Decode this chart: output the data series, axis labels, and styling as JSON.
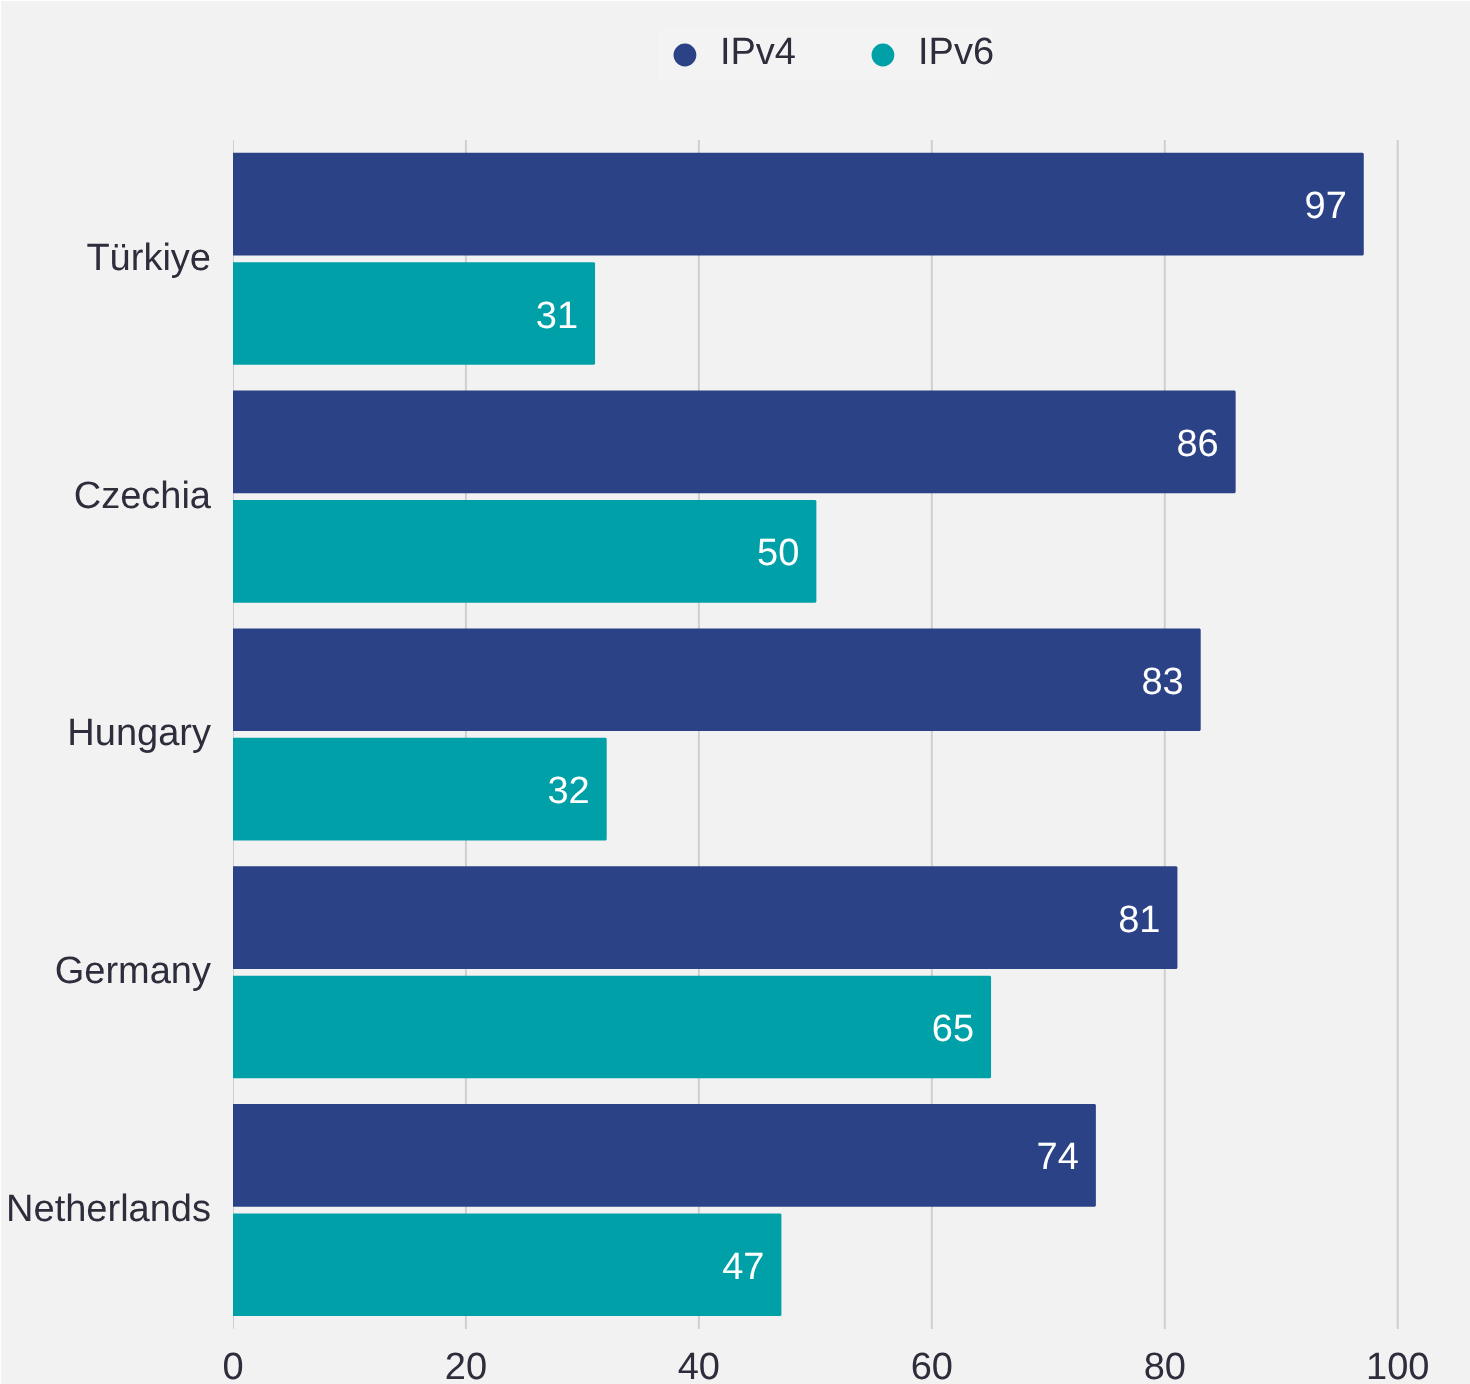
{
  "chart_data": {
    "type": "bar",
    "orientation": "horizontal",
    "categories": [
      "Türkiye",
      "Czechia",
      "Hungary",
      "Germany",
      "Netherlands"
    ],
    "series": [
      {
        "name": "IPv4",
        "color": "#2b4287",
        "values": [
          97,
          86,
          83,
          81,
          74
        ]
      },
      {
        "name": "IPv6",
        "color": "#00a0a8",
        "values": [
          31,
          50,
          32,
          65,
          47
        ]
      }
    ],
    "xlim": [
      0,
      100
    ],
    "xticks": [
      0,
      20,
      40,
      60,
      80,
      100
    ],
    "grid": "x",
    "legend": "top",
    "data_labels": true
  }
}
